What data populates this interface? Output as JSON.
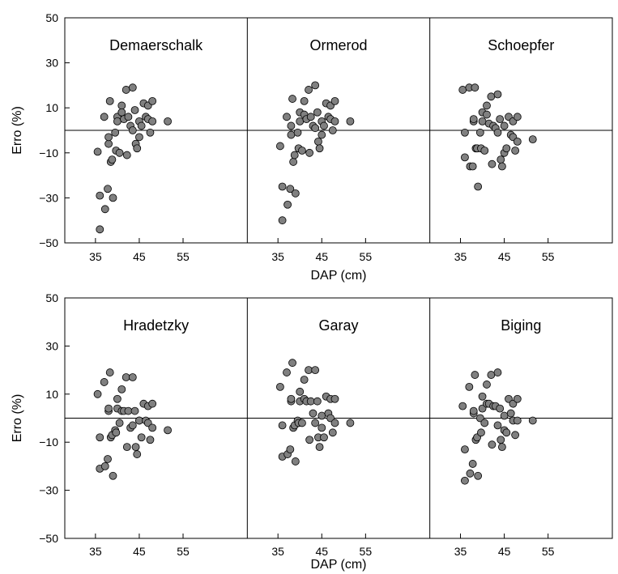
{
  "colors": {
    "point_fill": "#808080",
    "point_stroke": "#000000",
    "axis": "#000000",
    "background": "#ffffff"
  },
  "chart_data": [
    {
      "type": "scatter",
      "row_label": "top",
      "xlabel": "DAP (cm)",
      "ylabel": "Erro (%)",
      "xlim": [
        28,
        153
      ],
      "ylim": [
        -50,
        50
      ],
      "yticks": [
        -50,
        -30,
        -10,
        10,
        30,
        50
      ],
      "xtick_values": [
        35,
        45,
        55
      ],
      "x_tick_labels": [
        "35",
        "45",
        "55"
      ],
      "y_tick_labels": [
        "−50",
        "−30",
        "−10",
        "10",
        "30",
        "50"
      ],
      "zero_line": 0,
      "series": [
        {
          "name": "Demaerschalk",
          "points": [
            [
              35.5,
              -9.5
            ],
            [
              36,
              -29
            ],
            [
              36,
              -44
            ],
            [
              37,
              6
            ],
            [
              37.2,
              -35
            ],
            [
              37.8,
              -26
            ],
            [
              38,
              -6
            ],
            [
              38,
              -3
            ],
            [
              38.3,
              13
            ],
            [
              38.5,
              -14
            ],
            [
              38.8,
              -13
            ],
            [
              39,
              -30
            ],
            [
              39.5,
              -1
            ],
            [
              39.7,
              -9
            ],
            [
              40,
              6
            ],
            [
              40,
              4
            ],
            [
              40.5,
              -10
            ],
            [
              41,
              11
            ],
            [
              41,
              8
            ],
            [
              41.5,
              5
            ],
            [
              42,
              18
            ],
            [
              42.2,
              -11
            ],
            [
              42.5,
              6
            ],
            [
              43,
              2
            ],
            [
              43.5,
              19
            ],
            [
              43.5,
              0
            ],
            [
              44,
              9
            ],
            [
              44.2,
              -6
            ],
            [
              44.5,
              -8
            ],
            [
              45,
              -3
            ],
            [
              45,
              4
            ],
            [
              45.5,
              2
            ],
            [
              46,
              12
            ],
            [
              46.5,
              6
            ],
            [
              47,
              5
            ],
            [
              47,
              11
            ],
            [
              47.5,
              -1
            ],
            [
              48,
              4
            ],
            [
              48,
              13
            ],
            [
              51.5,
              4
            ]
          ]
        },
        {
          "name": "Ormerod",
          "points": [
            [
              35.5,
              -7
            ],
            [
              36,
              -25
            ],
            [
              36,
              -40
            ],
            [
              37,
              6
            ],
            [
              37.2,
              -33
            ],
            [
              37.8,
              -26
            ],
            [
              38,
              -2
            ],
            [
              38,
              2
            ],
            [
              38.3,
              14
            ],
            [
              38.5,
              -14
            ],
            [
              38.8,
              -11
            ],
            [
              39,
              -28
            ],
            [
              39.5,
              -1
            ],
            [
              39.7,
              -8
            ],
            [
              40,
              8
            ],
            [
              40,
              4
            ],
            [
              40.5,
              -9
            ],
            [
              41,
              13
            ],
            [
              41,
              7
            ],
            [
              41.5,
              5
            ],
            [
              42,
              18
            ],
            [
              42.2,
              -10
            ],
            [
              42.5,
              6
            ],
            [
              43,
              2
            ],
            [
              43.5,
              20
            ],
            [
              43.5,
              1
            ],
            [
              44,
              8
            ],
            [
              44.2,
              -5
            ],
            [
              44.5,
              -8
            ],
            [
              45,
              -2
            ],
            [
              45,
              4
            ],
            [
              45.5,
              2
            ],
            [
              46,
              12
            ],
            [
              46.5,
              6
            ],
            [
              47,
              5
            ],
            [
              47,
              11
            ],
            [
              47.5,
              0
            ],
            [
              48,
              4
            ],
            [
              48,
              13
            ],
            [
              51.5,
              4
            ]
          ]
        },
        {
          "name": "Schoepfer",
          "points": [
            [
              35.5,
              18
            ],
            [
              36,
              -1
            ],
            [
              36,
              -12
            ],
            [
              37,
              19
            ],
            [
              37.2,
              -16
            ],
            [
              37.8,
              -16
            ],
            [
              38,
              4
            ],
            [
              38,
              5
            ],
            [
              38.3,
              19
            ],
            [
              38.5,
              -8
            ],
            [
              38.8,
              -8
            ],
            [
              39,
              -25
            ],
            [
              39.5,
              -1
            ],
            [
              39.7,
              -8
            ],
            [
              40,
              8
            ],
            [
              40,
              4
            ],
            [
              40.5,
              -9
            ],
            [
              41,
              11
            ],
            [
              41,
              7
            ],
            [
              41.5,
              3
            ],
            [
              42,
              15
            ],
            [
              42.2,
              -15
            ],
            [
              42.5,
              2
            ],
            [
              43,
              1
            ],
            [
              43.5,
              16
            ],
            [
              43.5,
              -1
            ],
            [
              44,
              5
            ],
            [
              44.2,
              -13
            ],
            [
              44.5,
              -16
            ],
            [
              45,
              -10
            ],
            [
              45,
              2
            ],
            [
              45.5,
              -8
            ],
            [
              46,
              6
            ],
            [
              46.5,
              -2
            ],
            [
              47,
              -3
            ],
            [
              47,
              4
            ],
            [
              47.5,
              -9
            ],
            [
              48,
              -5
            ],
            [
              48,
              6
            ],
            [
              51.5,
              -4
            ]
          ]
        }
      ]
    },
    {
      "type": "scatter",
      "row_label": "bottom",
      "xlabel": "DAP (cm)",
      "ylabel": "Erro (%)",
      "xlim": [
        28,
        153
      ],
      "ylim": [
        -50,
        50
      ],
      "yticks": [
        -50,
        -30,
        -10,
        10,
        30,
        50
      ],
      "xtick_values": [
        35,
        45,
        55
      ],
      "x_tick_labels": [
        "35",
        "45",
        "55"
      ],
      "y_tick_labels": [
        "−50",
        "−30",
        "−10",
        "10",
        "30",
        "50"
      ],
      "zero_line": 0,
      "series": [
        {
          "name": "Hradetzky",
          "points": [
            [
              35.5,
              10
            ],
            [
              36,
              -8
            ],
            [
              36,
              -21
            ],
            [
              37,
              15
            ],
            [
              37.2,
              -20
            ],
            [
              37.8,
              -17
            ],
            [
              38,
              3
            ],
            [
              38,
              4
            ],
            [
              38.3,
              19
            ],
            [
              38.5,
              -8
            ],
            [
              38.8,
              -7
            ],
            [
              39,
              -24
            ],
            [
              39.5,
              -5
            ],
            [
              39.7,
              -6
            ],
            [
              40,
              8
            ],
            [
              40,
              4
            ],
            [
              40.5,
              -2
            ],
            [
              41,
              12
            ],
            [
              41,
              3
            ],
            [
              41.5,
              3
            ],
            [
              42,
              17
            ],
            [
              42.2,
              -12
            ],
            [
              42.5,
              3
            ],
            [
              43,
              -4
            ],
            [
              43.5,
              17
            ],
            [
              43.5,
              -3
            ],
            [
              44,
              3
            ],
            [
              44.2,
              -12
            ],
            [
              44.5,
              -15
            ],
            [
              45,
              -1
            ],
            [
              45,
              -1
            ],
            [
              45.5,
              -8
            ],
            [
              46,
              6
            ],
            [
              46.5,
              -1
            ],
            [
              47,
              -2
            ],
            [
              47,
              5
            ],
            [
              47.5,
              -9
            ],
            [
              48,
              -4
            ],
            [
              48,
              6
            ],
            [
              51.5,
              -5
            ]
          ]
        },
        {
          "name": "Garay",
          "points": [
            [
              35.5,
              13
            ],
            [
              36,
              -3
            ],
            [
              36,
              -16
            ],
            [
              37,
              19
            ],
            [
              37.2,
              -15
            ],
            [
              37.8,
              -13
            ],
            [
              38,
              7
            ],
            [
              38,
              8
            ],
            [
              38.3,
              23
            ],
            [
              38.5,
              -4
            ],
            [
              38.8,
              -3
            ],
            [
              39,
              -18
            ],
            [
              39.5,
              -1
            ],
            [
              39.7,
              -2
            ],
            [
              40,
              11
            ],
            [
              40,
              7
            ],
            [
              40.5,
              -2
            ],
            [
              41,
              16
            ],
            [
              41,
              8
            ],
            [
              41.5,
              7
            ],
            [
              42,
              20
            ],
            [
              42.2,
              -9
            ],
            [
              42.5,
              7
            ],
            [
              43,
              2
            ],
            [
              43.5,
              20
            ],
            [
              43.5,
              -2
            ],
            [
              44,
              7
            ],
            [
              44.2,
              -8
            ],
            [
              44.5,
              -12
            ],
            [
              45,
              -4
            ],
            [
              45,
              1
            ],
            [
              45.5,
              -8
            ],
            [
              46,
              9
            ],
            [
              46.5,
              2
            ],
            [
              47,
              0
            ],
            [
              47,
              8
            ],
            [
              47.5,
              -6
            ],
            [
              48,
              -2
            ],
            [
              48,
              8
            ],
            [
              51.5,
              -2
            ]
          ]
        },
        {
          "name": "Biging",
          "points": [
            [
              35.5,
              5
            ],
            [
              36,
              -13
            ],
            [
              36,
              -26
            ],
            [
              37,
              13
            ],
            [
              37.2,
              -23
            ],
            [
              37.8,
              -19
            ],
            [
              38,
              2
            ],
            [
              38,
              3
            ],
            [
              38.3,
              18
            ],
            [
              38.5,
              -9
            ],
            [
              38.8,
              -8
            ],
            [
              39,
              -24
            ],
            [
              39.5,
              0
            ],
            [
              39.7,
              -6
            ],
            [
              40,
              9
            ],
            [
              40,
              4
            ],
            [
              40.5,
              -2
            ],
            [
              41,
              14
            ],
            [
              41,
              6
            ],
            [
              41.5,
              6
            ],
            [
              42,
              18
            ],
            [
              42.2,
              -11
            ],
            [
              42.5,
              5
            ],
            [
              43,
              5
            ],
            [
              43.5,
              19
            ],
            [
              43.5,
              -3
            ],
            [
              44,
              4
            ],
            [
              44.2,
              -9
            ],
            [
              44.5,
              -12
            ],
            [
              45,
              -5
            ],
            [
              45,
              1
            ],
            [
              45.5,
              -6
            ],
            [
              46,
              8
            ],
            [
              46.5,
              2
            ],
            [
              47,
              -1
            ],
            [
              47,
              6
            ],
            [
              47.5,
              -7
            ],
            [
              48,
              -1
            ],
            [
              48,
              8
            ],
            [
              51.5,
              -1
            ]
          ]
        }
      ]
    }
  ]
}
